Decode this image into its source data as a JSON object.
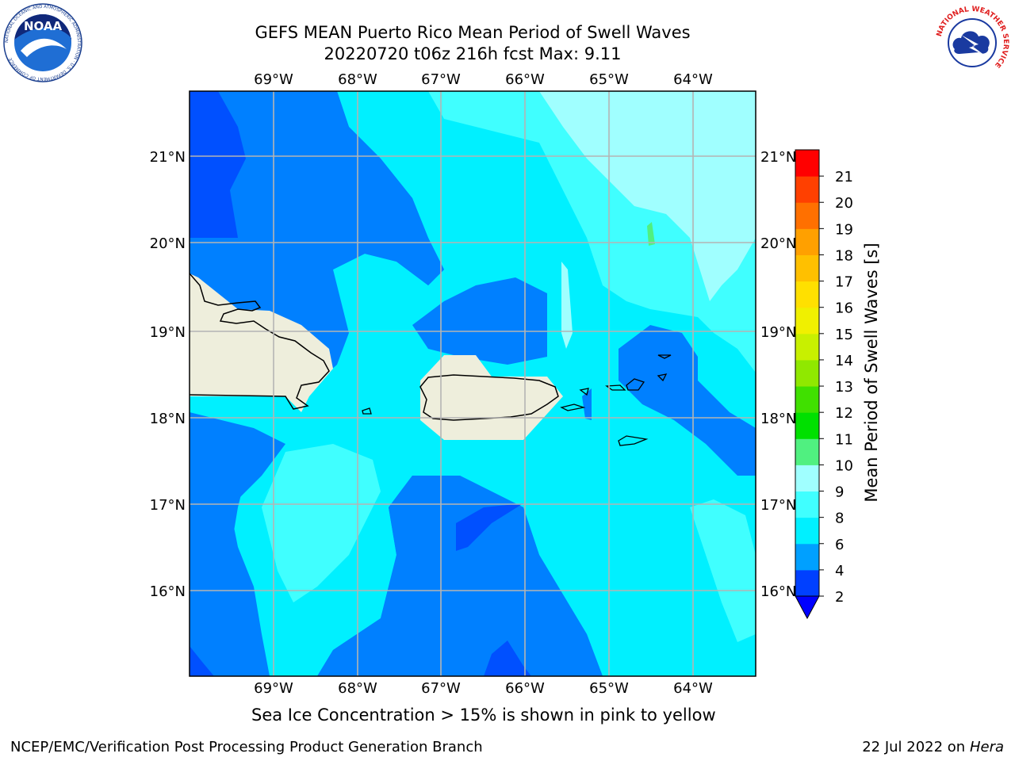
{
  "title": {
    "line1": "GEFS MEAN Puerto Rico Mean Period of Swell Waves",
    "line2": "20220720 t06z 216h fcst   Max: 9.11"
  },
  "map": {
    "lon_ticks": [
      "69°W",
      "68°W",
      "67°W",
      "66°W",
      "65°W",
      "64°W"
    ],
    "lat_ticks": [
      "21°N",
      "20°N",
      "19°N",
      "18°N",
      "17°N",
      "16°N"
    ],
    "lon_range": [
      -70.0,
      -63.25
    ],
    "lat_range": [
      15.0,
      21.75
    ],
    "land_color": "#eeeedc",
    "coast_color": "#000000",
    "grid_color": "#b4b4b4"
  },
  "colorbar": {
    "label": "Mean Period of Swell Waves [s]",
    "ticks": [
      "2",
      "4",
      "6",
      "8",
      "9",
      "10",
      "11",
      "12",
      "13",
      "14",
      "15",
      "16",
      "17",
      "18",
      "19",
      "20",
      "21"
    ],
    "colors": [
      "#0040ff",
      "#00a0ff",
      "#00f0ff",
      "#40ffff",
      "#a0ffff",
      "#50f080",
      "#00e000",
      "#40e000",
      "#90e800",
      "#c8f000",
      "#f0f000",
      "#ffe000",
      "#ffc000",
      "#ffa000",
      "#ff7000",
      "#ff4000",
      "#ff0000"
    ],
    "under_color": "#0000ff"
  },
  "palette": {
    "level_0_2": "#0000f5",
    "level_2_4": "#0050ff",
    "level_4_6": "#0080ff",
    "level_6_8": "#00f0ff",
    "level_8_9": "#40ffff",
    "level_9_10": "#a0ffff",
    "level_10_11": "#50f080"
  },
  "caption": "Sea Ice Concentration > 15% is shown in pink to yellow",
  "footer": {
    "left": "NCEP/EMC/Verification Post Processing Product Generation Branch",
    "date": "22 Jul 2022 on ",
    "machine": "Hera"
  },
  "logos": {
    "noaa": "NOAA",
    "noaa_ring": "NATIONAL OCEANIC AND ATMOSPHERIC ADMINISTRATION · U.S. DEPARTMENT OF COMMERCE",
    "nws_ring": "NATIONAL WEATHER SERVICE"
  }
}
